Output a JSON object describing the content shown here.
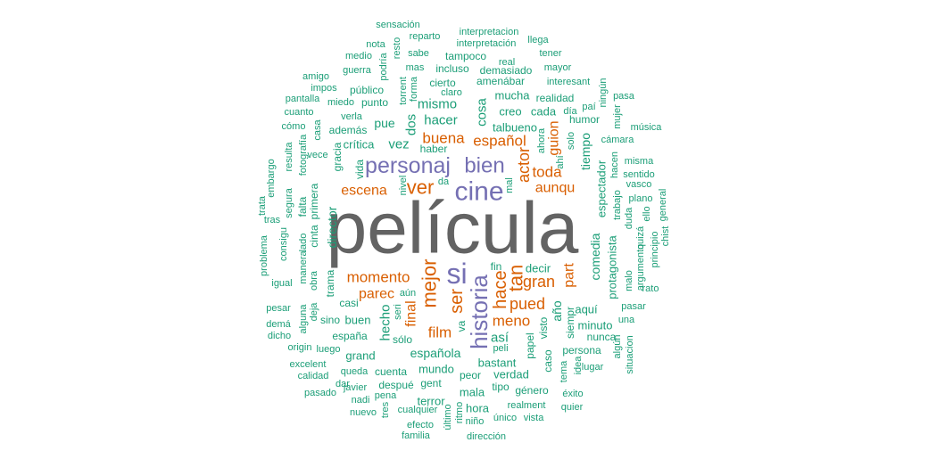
{
  "colors": {
    "top": "#636363",
    "purple": "#7570b3",
    "orange": "#d95f02",
    "teal": "#1b9e77"
  },
  "words": [
    {
      "text": "película",
      "color": "top"
    },
    {
      "text": "cine",
      "color": "purple"
    },
    {
      "text": "personaj",
      "color": "purple"
    },
    {
      "text": "bien",
      "color": "purple"
    },
    {
      "text": "si",
      "color": "purple"
    },
    {
      "text": "historia",
      "color": "purple"
    },
    {
      "text": "ver",
      "color": "orange"
    },
    {
      "text": "español",
      "color": "orange"
    },
    {
      "text": "buena",
      "color": "orange"
    },
    {
      "text": "actor",
      "color": "orange"
    },
    {
      "text": "toda",
      "color": "orange"
    },
    {
      "text": "aunqu",
      "color": "orange"
    },
    {
      "text": "escena",
      "color": "orange"
    },
    {
      "text": "momento",
      "color": "orange"
    },
    {
      "text": "parec",
      "color": "orange"
    },
    {
      "text": "mejor",
      "color": "orange"
    },
    {
      "text": "ser",
      "color": "orange"
    },
    {
      "text": "hace",
      "color": "orange"
    },
    {
      "text": "tan",
      "color": "orange"
    },
    {
      "text": "gran",
      "color": "orange"
    },
    {
      "text": "pued",
      "color": "orange"
    },
    {
      "text": "meno",
      "color": "orange"
    },
    {
      "text": "film",
      "color": "orange"
    },
    {
      "text": "final",
      "color": "orange"
    },
    {
      "text": "guion",
      "color": "orange"
    },
    {
      "text": "part",
      "color": "orange"
    },
    {
      "text": "sensación",
      "color": "teal"
    },
    {
      "text": "reparto",
      "color": "teal"
    },
    {
      "text": "interpretacion",
      "color": "teal"
    },
    {
      "text": "nota",
      "color": "teal"
    },
    {
      "text": "resto",
      "color": "teal"
    },
    {
      "text": "interpretación",
      "color": "teal"
    },
    {
      "text": "llega",
      "color": "teal"
    },
    {
      "text": "medio",
      "color": "teal"
    },
    {
      "text": "podría",
      "color": "teal"
    },
    {
      "text": "sabe",
      "color": "teal"
    },
    {
      "text": "tampoco",
      "color": "teal"
    },
    {
      "text": "real",
      "color": "teal"
    },
    {
      "text": "tener",
      "color": "teal"
    },
    {
      "text": "guerra",
      "color": "teal"
    },
    {
      "text": "mas",
      "color": "teal"
    },
    {
      "text": "incluso",
      "color": "teal"
    },
    {
      "text": "demasiado",
      "color": "teal"
    },
    {
      "text": "mayor",
      "color": "teal"
    },
    {
      "text": "amigo",
      "color": "teal"
    },
    {
      "text": "impos",
      "color": "teal"
    },
    {
      "text": "público",
      "color": "teal"
    },
    {
      "text": "torrent",
      "color": "teal"
    },
    {
      "text": "forma",
      "color": "teal"
    },
    {
      "text": "cierto",
      "color": "teal"
    },
    {
      "text": "amenábar",
      "color": "teal"
    },
    {
      "text": "interesant",
      "color": "teal"
    },
    {
      "text": "ningún",
      "color": "teal"
    },
    {
      "text": "pantalla",
      "color": "teal"
    },
    {
      "text": "miedo",
      "color": "teal"
    },
    {
      "text": "punto",
      "color": "teal"
    },
    {
      "text": "claro",
      "color": "teal"
    },
    {
      "text": "mucha",
      "color": "teal"
    },
    {
      "text": "realidad",
      "color": "teal"
    },
    {
      "text": "pasa",
      "color": "teal"
    },
    {
      "text": "cuanto",
      "color": "teal"
    },
    {
      "text": "verla",
      "color": "teal"
    },
    {
      "text": "mismo",
      "color": "teal"
    },
    {
      "text": "creo",
      "color": "teal"
    },
    {
      "text": "cada",
      "color": "teal"
    },
    {
      "text": "día",
      "color": "teal"
    },
    {
      "text": "paí",
      "color": "teal"
    },
    {
      "text": "mujer",
      "color": "teal"
    },
    {
      "text": "cómo",
      "color": "teal"
    },
    {
      "text": "casa",
      "color": "teal"
    },
    {
      "text": "además",
      "color": "teal"
    },
    {
      "text": "dos",
      "color": "teal"
    },
    {
      "text": "hacer",
      "color": "teal"
    },
    {
      "text": "cosa",
      "color": "teal"
    },
    {
      "text": "pue",
      "color": "teal"
    },
    {
      "text": "talbueno",
      "color": "teal"
    },
    {
      "text": "humor",
      "color": "teal"
    },
    {
      "text": "música",
      "color": "teal"
    },
    {
      "text": "gracia",
      "color": "teal"
    },
    {
      "text": "crítica",
      "color": "teal"
    },
    {
      "text": "vez",
      "color": "teal"
    },
    {
      "text": "haber",
      "color": "teal"
    },
    {
      "text": "ahora",
      "color": "teal"
    },
    {
      "text": "solo",
      "color": "teal"
    },
    {
      "text": "cámara",
      "color": "teal"
    },
    {
      "text": "resulta",
      "color": "teal"
    },
    {
      "text": "fotografía",
      "color": "teal"
    },
    {
      "text": "vece",
      "color": "teal"
    },
    {
      "text": "tiempo",
      "color": "teal"
    },
    {
      "text": "misma",
      "color": "teal"
    },
    {
      "text": "embargo",
      "color": "teal"
    },
    {
      "text": "vida",
      "color": "teal"
    },
    {
      "text": "ahí",
      "color": "teal"
    },
    {
      "text": "hacen",
      "color": "teal"
    },
    {
      "text": "sentido",
      "color": "teal"
    },
    {
      "text": "segura",
      "color": "teal"
    },
    {
      "text": "primera",
      "color": "teal"
    },
    {
      "text": "nivel",
      "color": "teal"
    },
    {
      "text": "da",
      "color": "teal"
    },
    {
      "text": "mal",
      "color": "teal"
    },
    {
      "text": "espectador",
      "color": "teal"
    },
    {
      "text": "vasco",
      "color": "teal"
    },
    {
      "text": "trata",
      "color": "teal"
    },
    {
      "text": "falta",
      "color": "teal"
    },
    {
      "text": "trabajo",
      "color": "teal"
    },
    {
      "text": "plano",
      "color": "teal"
    },
    {
      "text": "tras",
      "color": "teal"
    },
    {
      "text": "cinta",
      "color": "teal"
    },
    {
      "text": "director",
      "color": "teal"
    },
    {
      "text": "duda",
      "color": "teal"
    },
    {
      "text": "ello",
      "color": "teal"
    },
    {
      "text": "general",
      "color": "teal"
    },
    {
      "text": "problema",
      "color": "teal"
    },
    {
      "text": "consigu",
      "color": "teal"
    },
    {
      "text": "lado",
      "color": "teal"
    },
    {
      "text": "manera",
      "color": "teal"
    },
    {
      "text": "comedia",
      "color": "teal"
    },
    {
      "text": "quizá",
      "color": "teal"
    },
    {
      "text": "principio",
      "color": "teal"
    },
    {
      "text": "chist",
      "color": "teal"
    },
    {
      "text": "protagonista",
      "color": "teal"
    },
    {
      "text": "argumento",
      "color": "teal"
    },
    {
      "text": "fin",
      "color": "teal"
    },
    {
      "text": "decir",
      "color": "teal"
    },
    {
      "text": "obra",
      "color": "teal"
    },
    {
      "text": "malo",
      "color": "teal"
    },
    {
      "text": "igual",
      "color": "teal"
    },
    {
      "text": "trama",
      "color": "teal"
    },
    {
      "text": "aún",
      "color": "teal"
    },
    {
      "text": "rato",
      "color": "teal"
    },
    {
      "text": "pesar",
      "color": "teal"
    },
    {
      "text": "casi",
      "color": "teal"
    },
    {
      "text": "seri",
      "color": "teal"
    },
    {
      "text": "año",
      "color": "teal"
    },
    {
      "text": "aquí",
      "color": "teal"
    },
    {
      "text": "pasar",
      "color": "teal"
    },
    {
      "text": "demá",
      "color": "teal"
    },
    {
      "text": "alguna",
      "color": "teal"
    },
    {
      "text": "deja",
      "color": "teal"
    },
    {
      "text": "buen",
      "color": "teal"
    },
    {
      "text": "hecho",
      "color": "teal"
    },
    {
      "text": "va",
      "color": "teal"
    },
    {
      "text": "así",
      "color": "teal"
    },
    {
      "text": "visto",
      "color": "teal"
    },
    {
      "text": "siempr",
      "color": "teal"
    },
    {
      "text": "minuto",
      "color": "teal"
    },
    {
      "text": "una",
      "color": "teal"
    },
    {
      "text": "dicho",
      "color": "teal"
    },
    {
      "text": "sino",
      "color": "teal"
    },
    {
      "text": "españa",
      "color": "teal"
    },
    {
      "text": "sólo",
      "color": "teal"
    },
    {
      "text": "nunca",
      "color": "teal"
    },
    {
      "text": "origin",
      "color": "teal"
    },
    {
      "text": "luego",
      "color": "teal"
    },
    {
      "text": "española",
      "color": "teal"
    },
    {
      "text": "peli",
      "color": "teal"
    },
    {
      "text": "papel",
      "color": "teal"
    },
    {
      "text": "persona",
      "color": "teal"
    },
    {
      "text": "algún",
      "color": "teal"
    },
    {
      "text": "situacion",
      "color": "teal"
    },
    {
      "text": "grand",
      "color": "teal"
    },
    {
      "text": "bastant",
      "color": "teal"
    },
    {
      "text": "caso",
      "color": "teal"
    },
    {
      "text": "excelent",
      "color": "teal"
    },
    {
      "text": "mundo",
      "color": "teal"
    },
    {
      "text": "idea",
      "color": "teal"
    },
    {
      "text": "lugar",
      "color": "teal"
    },
    {
      "text": "queda",
      "color": "teal"
    },
    {
      "text": "cuenta",
      "color": "teal"
    },
    {
      "text": "verdad",
      "color": "teal"
    },
    {
      "text": "calidad",
      "color": "teal"
    },
    {
      "text": "peor",
      "color": "teal"
    },
    {
      "text": "tema",
      "color": "teal"
    },
    {
      "text": "javier",
      "color": "teal"
    },
    {
      "text": "despué",
      "color": "teal"
    },
    {
      "text": "gent",
      "color": "teal"
    },
    {
      "text": "tipo",
      "color": "teal"
    },
    {
      "text": "pasado",
      "color": "teal"
    },
    {
      "text": "pena",
      "color": "teal"
    },
    {
      "text": "mala",
      "color": "teal"
    },
    {
      "text": "género",
      "color": "teal"
    },
    {
      "text": "éxito",
      "color": "teal"
    },
    {
      "text": "nadi",
      "color": "teal"
    },
    {
      "text": "terror",
      "color": "teal"
    },
    {
      "text": "tres",
      "color": "teal"
    },
    {
      "text": "cualquier",
      "color": "teal"
    },
    {
      "text": "hora",
      "color": "teal"
    },
    {
      "text": "realment",
      "color": "teal"
    },
    {
      "text": "quier",
      "color": "teal"
    },
    {
      "text": "nuevo",
      "color": "teal"
    },
    {
      "text": "último",
      "color": "teal"
    },
    {
      "text": "ritmo",
      "color": "teal"
    },
    {
      "text": "único",
      "color": "teal"
    },
    {
      "text": "vista",
      "color": "teal"
    },
    {
      "text": "efecto",
      "color": "teal"
    },
    {
      "text": "niño",
      "color": "teal"
    },
    {
      "text": "familia",
      "color": "teal"
    },
    {
      "text": "dirección",
      "color": "teal"
    },
    {
      "text": "dar",
      "color": "teal"
    }
  ]
}
